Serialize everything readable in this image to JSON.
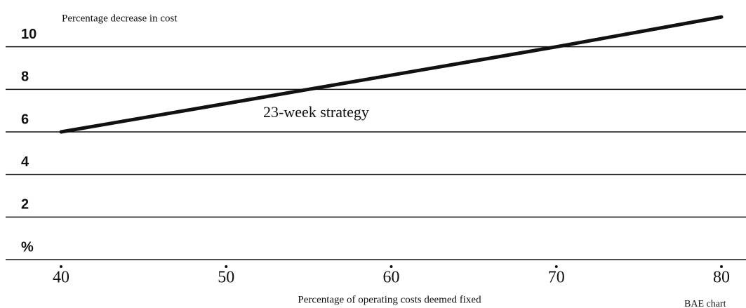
{
  "chart_data": {
    "type": "line",
    "title": "Percentage decrease in cost",
    "x_label": "Percentage of operating costs deemed fixed",
    "annotation": "23-week strategy",
    "source": "BAE chart",
    "x": [
      40,
      55,
      70,
      80
    ],
    "series": [
      {
        "name": "23-week strategy",
        "color": "#111111",
        "values": [
          6,
          8,
          10,
          11.4
        ]
      }
    ],
    "xlim": [
      40,
      80
    ],
    "xticks": [
      40,
      50,
      60,
      70,
      80
    ],
    "ylim": [
      0,
      12
    ],
    "yticks": [
      {
        "value": 0,
        "label": "%"
      },
      2,
      4,
      6,
      8,
      10
    ],
    "grid": true
  }
}
